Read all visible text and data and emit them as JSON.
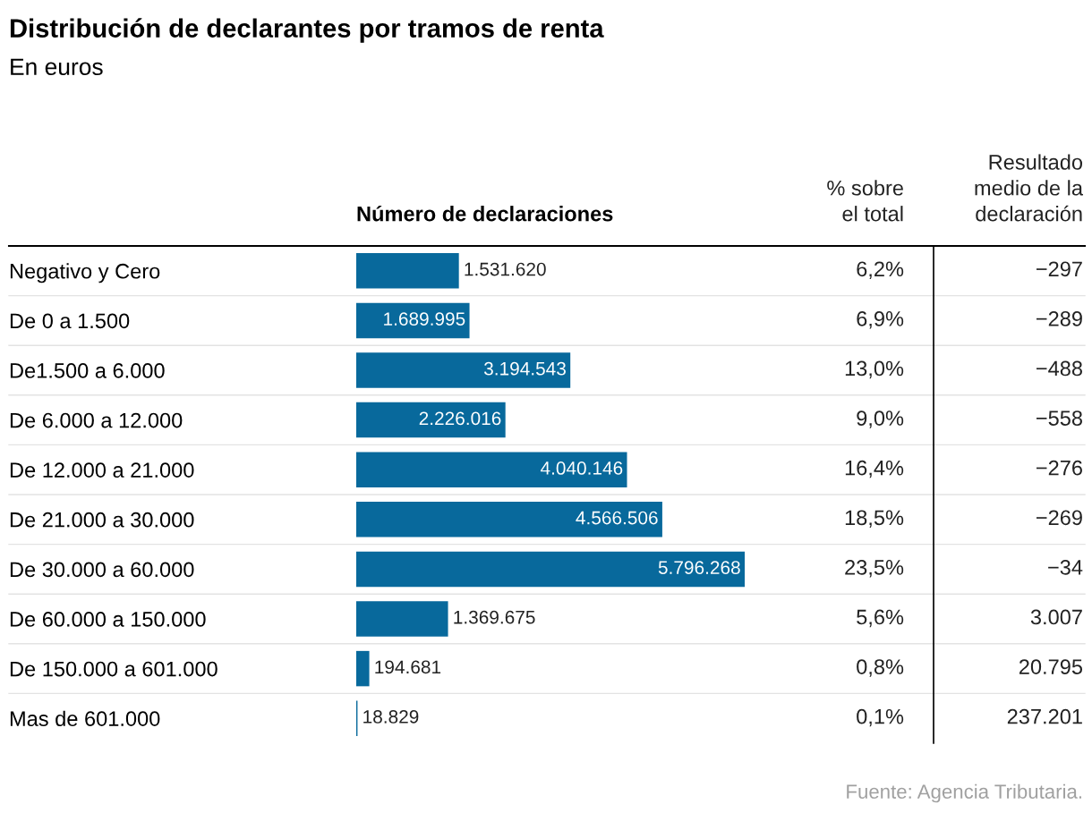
{
  "chart_data": [
    {
      "type": "bar",
      "orientation": "horizontal",
      "title": "Distribución de declarantes por tramos de renta",
      "subtitle": "En euros",
      "xlabel": "Número de declaraciones",
      "annotations": [
        "Fuente: Agencia Tributaria."
      ],
      "color": "#08699c",
      "categories": [
        "Negativo y Cero",
        "De 0 a 1.500",
        "De1.500 a 6.000",
        "De 6.000 a 12.000",
        "De 12.000 a 21.000",
        "De 21.000 a 30.000",
        "De 30.000 a 60.000",
        "De 60.000 a 150.000",
        "De 150.000 a 601.000",
        "Mas de 601.000"
      ],
      "values": [
        1531620,
        1689995,
        3194543,
        2226016,
        4040146,
        4566506,
        5796268,
        1369675,
        194681,
        18829
      ],
      "value_labels": [
        "1.531.620",
        "1.689.995",
        "3.194.543",
        "2.226.016",
        "4.040.146",
        "4.566.506",
        "5.796.268",
        "1.369.675",
        "194.681",
        "18.829"
      ]
    },
    {
      "type": "other",
      "title": "% sobre\nel total",
      "values": [
        6.2,
        6.9,
        13.0,
        9.0,
        16.4,
        18.5,
        23.5,
        5.6,
        0.8,
        0.1
      ],
      "value_labels": [
        "6,2%",
        "6,9%",
        "13,0%",
        "9,0%",
        "16,4%",
        "18,5%",
        "23,5%",
        "5,6%",
        "0,8%",
        "0,1%"
      ]
    },
    {
      "type": "other",
      "title": "Resultado\nmedio de la\ndeclaración",
      "values": [
        -297,
        -289,
        -488,
        -558,
        -276,
        -269,
        -34,
        3007,
        20795,
        237201
      ],
      "value_labels": [
        "−297",
        "−289",
        "−488",
        "−558",
        "−276",
        "−269",
        "−34",
        "3.007",
        "20.795",
        "237.201"
      ]
    }
  ]
}
